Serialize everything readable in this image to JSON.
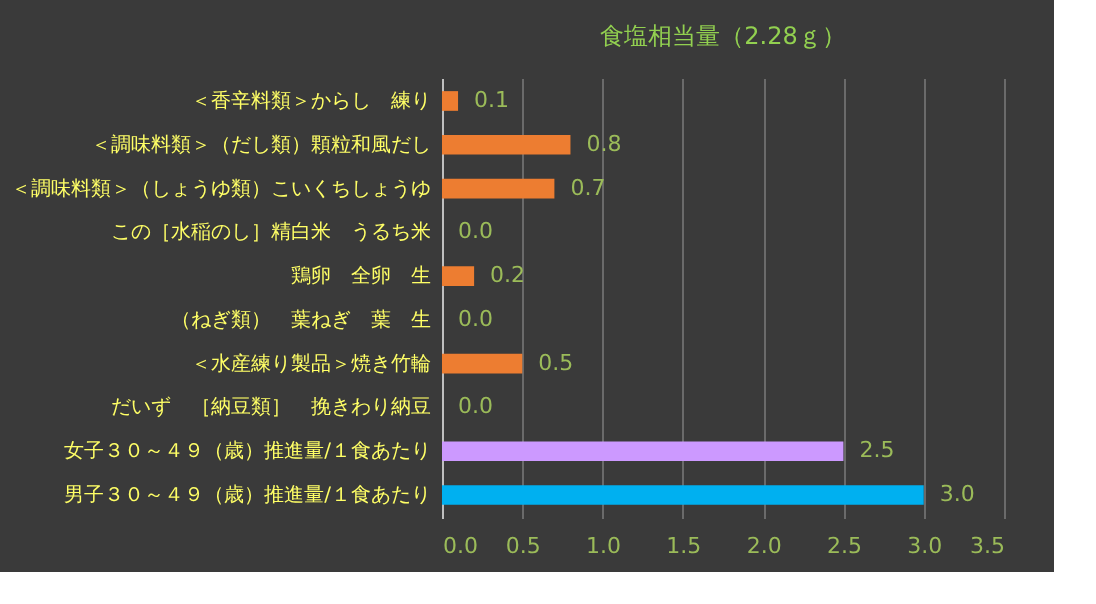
{
  "chart_data": {
    "type": "bar",
    "orientation": "horizontal",
    "title": "食塩相当量（2.28ｇ）",
    "categories": [
      "＜香辛料類＞からし　練り",
      "＜調味料類＞（だし類）顆粒和風だし",
      "＜調味料類＞（しょうゆ類）こいくちしょうゆ",
      "この［水稲のし］精白米　うるち米",
      "鶏卵　全卵　生",
      "（ねぎ類）　葉ねぎ　葉　生",
      "＜水産練り製品＞焼き竹輪",
      "だいず　［納豆類］　挽きわり納豆",
      "女子３０～４９（歳）推進量/１食あたり",
      "男子３０～４９（歳）推進量/１食あたり"
    ],
    "values": [
      0.1,
      0.8,
      0.7,
      0.0,
      0.2,
      0.0,
      0.5,
      0.0,
      2.5,
      3.0
    ],
    "value_labels": [
      "0.1",
      "0.8",
      "0.7",
      "0.0",
      "0.2",
      "0.0",
      "0.5",
      "0.0",
      "2.5",
      "3.0"
    ],
    "colors": [
      "#ed7d31",
      "#ed7d31",
      "#ed7d31",
      "#ed7d31",
      "#ed7d31",
      "#ed7d31",
      "#ed7d31",
      "#ed7d31",
      "#cc99ff",
      "#00b0f0"
    ],
    "xlim": [
      0,
      3.5
    ],
    "xticks": [
      {
        "value": 0,
        "label": "0.0"
      },
      0.5,
      {
        "value": 1,
        "label": "1.0"
      },
      1.5,
      {
        "value": 2,
        "label": "2.0"
      },
      2.5,
      {
        "value": 3,
        "label": "3.0"
      },
      3.5
    ],
    "grid": "x",
    "legend": false
  }
}
